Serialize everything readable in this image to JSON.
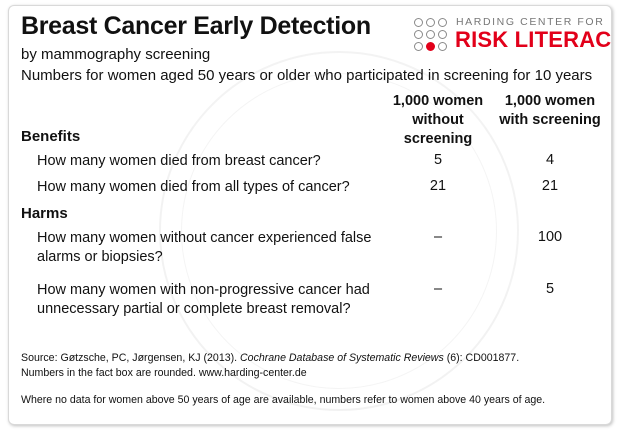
{
  "header": {
    "title": "Breast Cancer Early Detection",
    "subtitle": "by mammography screening",
    "description": "Numbers for women aged 50 years or older who participated in screening for 10 years"
  },
  "logo": {
    "top_text": "HARDING CENTER FOR",
    "main_text": "RISK LITERACY",
    "colors": {
      "red": "#e2001a",
      "gray": "#8a8a8a"
    }
  },
  "columns": {
    "without": "1,000 women without screening",
    "with": "1,000 women with screening"
  },
  "benefits": {
    "heading": "Benefits",
    "rows": [
      {
        "question": "How many women died from breast cancer?",
        "without": "5",
        "with": "4"
      },
      {
        "question": "How many women died from all types of cancer?",
        "without": "21",
        "with": "21"
      }
    ]
  },
  "harms": {
    "heading": "Harms",
    "rows": [
      {
        "question": "How many women without cancer experienced false alarms or biopsies?",
        "without": "–",
        "with": "100"
      },
      {
        "question": "How many women with non-progressive cancer had unnecessary partial or complete breast removal?",
        "without": "–",
        "with": "5"
      }
    ]
  },
  "footer": {
    "source_prefix": "Source: Gøtzsche, PC, Jørgensen, KJ (2013). ",
    "source_journal": "Cochrane Database of Systematic Reviews",
    "source_suffix": " (6): CD001877.",
    "rounding_note": "Numbers in the fact box are rounded. www.harding-center.de",
    "age_note": "Where no data for women above 50 years of age are available, numbers refer to women above 40 years of age."
  }
}
